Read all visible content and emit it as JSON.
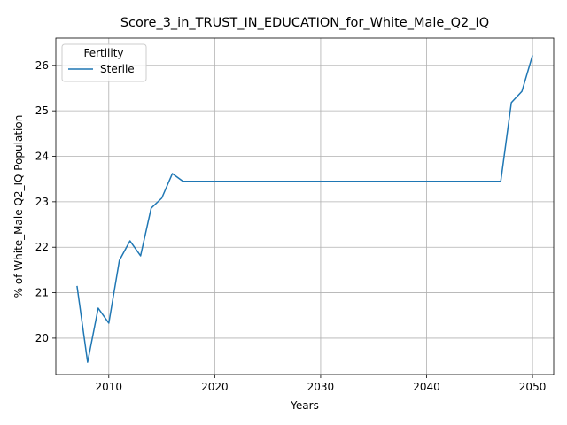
{
  "chart_data": {
    "type": "line",
    "title": "Score_3_in_TRUST_IN_EDUCATION_for_White_Male_Q2_IQ",
    "xlabel": "Years",
    "ylabel": "% of White_Male Q2_IQ Population",
    "xlim": [
      2005,
      2052
    ],
    "ylim": [
      19.2,
      26.6
    ],
    "xticks": [
      2010,
      2020,
      2030,
      2040,
      2050
    ],
    "yticks": [
      20,
      21,
      22,
      23,
      24,
      25,
      26
    ],
    "grid": true,
    "legend": {
      "title": "Fertility",
      "placement": "top-left"
    },
    "series": [
      {
        "name": "Sterile",
        "color": "#1f77b4",
        "x": [
          2007,
          2008,
          2009,
          2010,
          2011,
          2012,
          2013,
          2014,
          2015,
          2016,
          2017,
          2018,
          2019,
          2020,
          2021,
          2022,
          2023,
          2024,
          2025,
          2026,
          2027,
          2028,
          2029,
          2030,
          2031,
          2032,
          2033,
          2034,
          2035,
          2036,
          2037,
          2038,
          2039,
          2040,
          2041,
          2042,
          2043,
          2044,
          2045,
          2046,
          2047,
          2048,
          2049,
          2050
        ],
        "y": [
          21.15,
          19.47,
          20.66,
          20.33,
          21.71,
          22.14,
          21.81,
          22.86,
          23.08,
          23.62,
          23.45,
          23.45,
          23.45,
          23.45,
          23.45,
          23.45,
          23.45,
          23.45,
          23.45,
          23.45,
          23.45,
          23.45,
          23.45,
          23.45,
          23.45,
          23.45,
          23.45,
          23.45,
          23.45,
          23.45,
          23.45,
          23.45,
          23.45,
          23.45,
          23.45,
          23.45,
          23.45,
          23.45,
          23.45,
          23.45,
          23.45,
          25.18,
          25.43,
          26.22
        ]
      }
    ]
  }
}
